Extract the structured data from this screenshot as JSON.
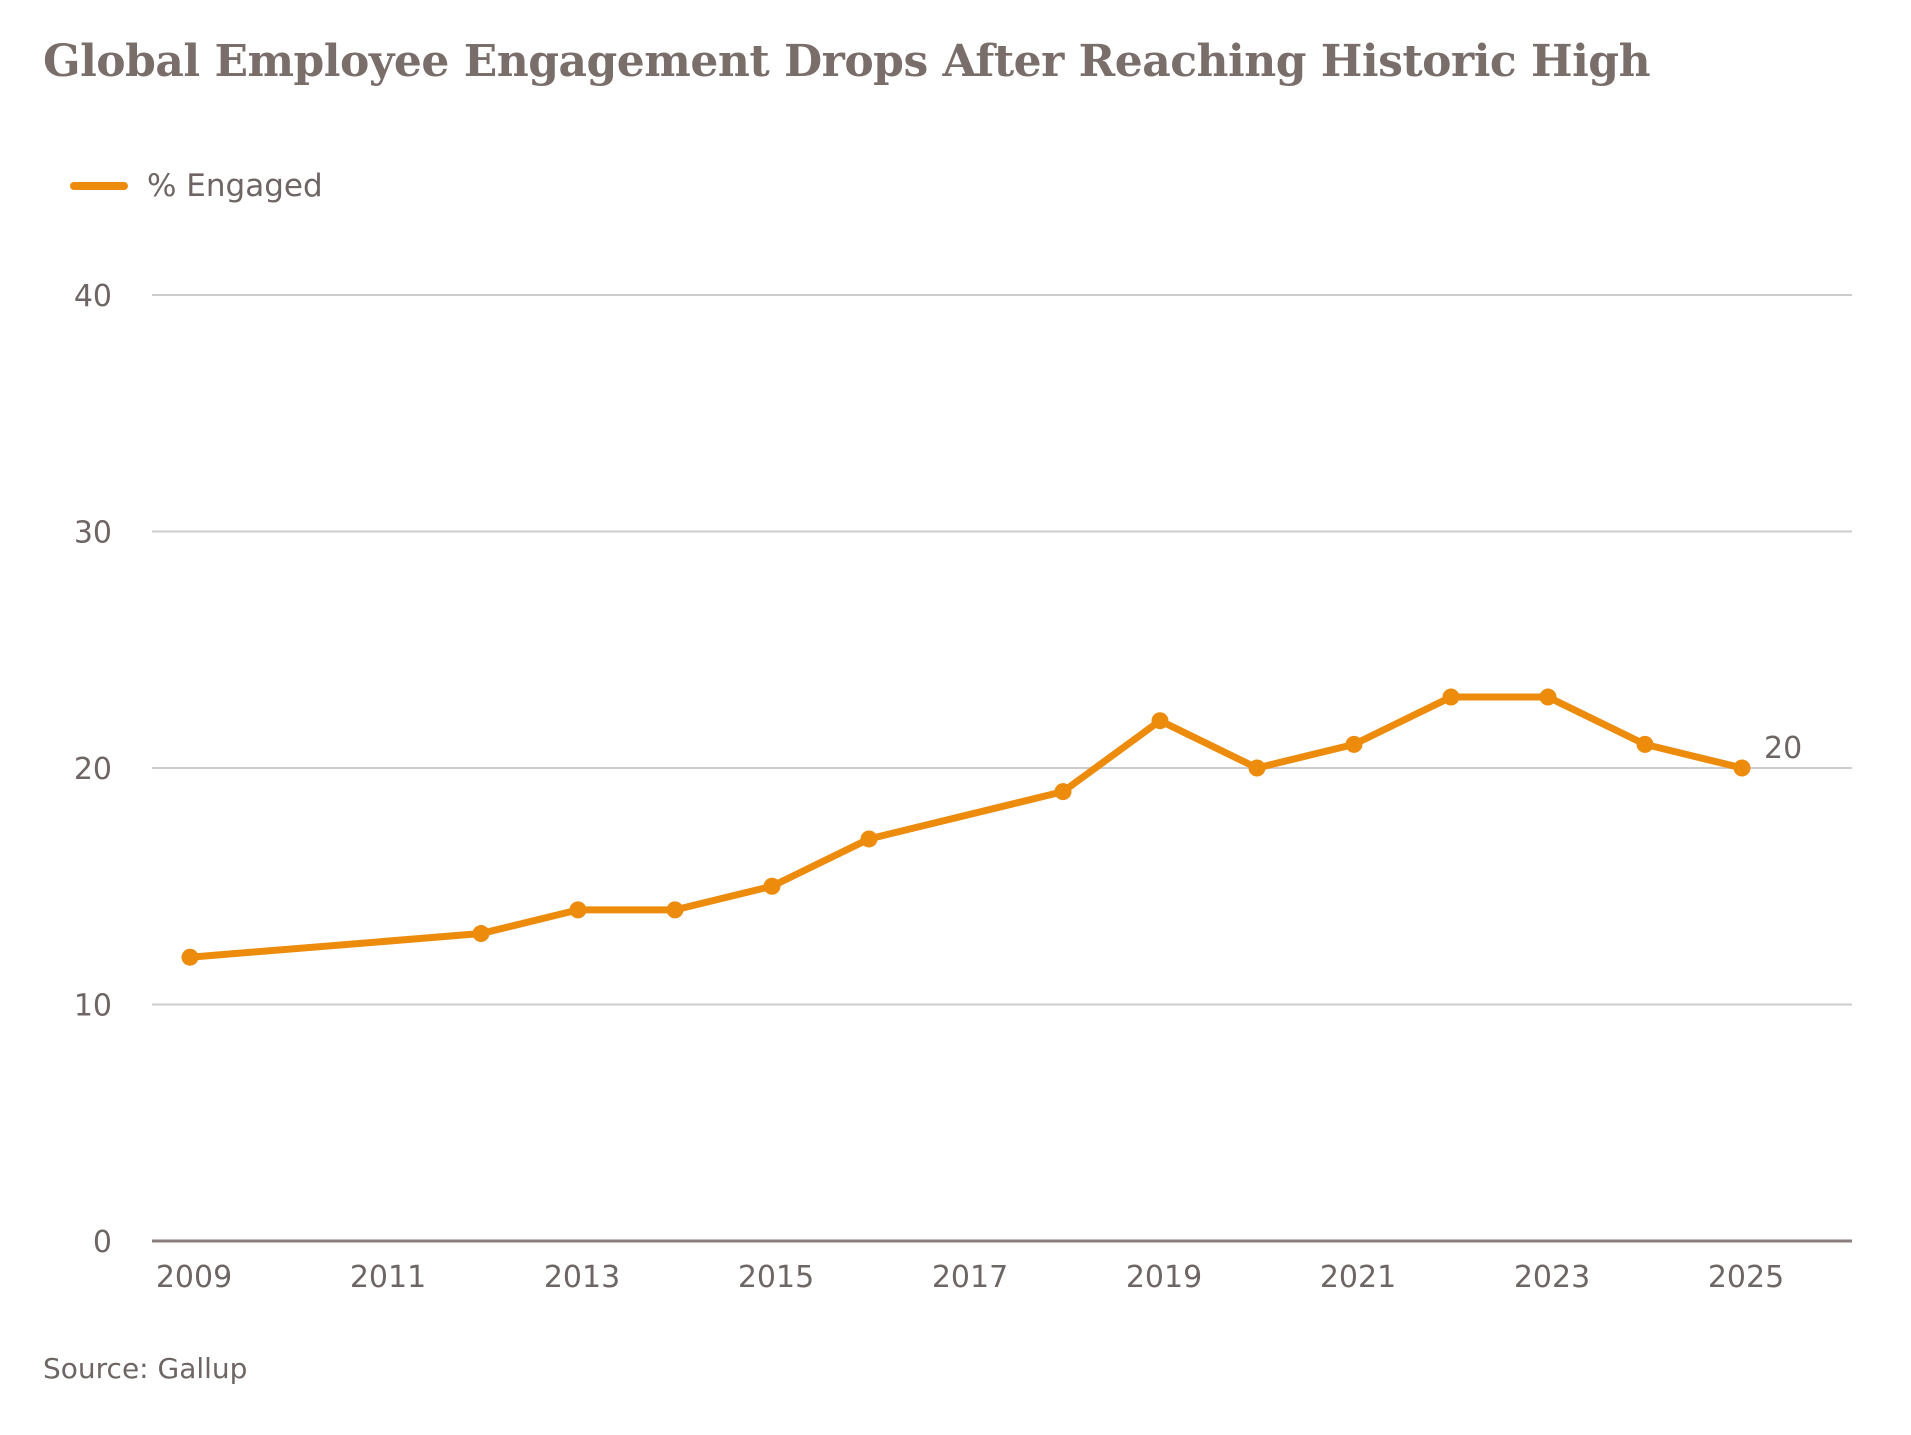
{
  "title": "Global Employee Engagement Drops After Reaching Historic High",
  "legend": {
    "series_label": "% Engaged"
  },
  "source": "Source: Gallup",
  "colors": {
    "series": "#ec8b0c",
    "grid": "#cccccc",
    "axis": "#8a7f7d",
    "text": "#6e6664",
    "title": "#7a6e6b"
  },
  "chart_data": {
    "type": "line",
    "title": "Global Employee Engagement Drops After Reaching Historic High",
    "xlabel": "",
    "ylabel": "",
    "ylim": [
      0,
      40
    ],
    "xlim": [
      2009,
      2026.4
    ],
    "yticks": [
      0,
      10,
      20,
      30,
      40
    ],
    "xticks": [
      2009,
      2011,
      2013,
      2015,
      2017,
      2019,
      2021,
      2023,
      2025
    ],
    "grid": true,
    "legend": "top-left",
    "series": [
      {
        "name": "% Engaged",
        "x": [
          2009,
          2012,
          2013,
          2014,
          2015,
          2016,
          2018,
          2019,
          2020,
          2021,
          2022,
          2023,
          2024,
          2025
        ],
        "values": [
          12,
          13,
          14,
          14,
          15,
          17,
          19,
          22,
          20,
          21,
          23,
          23,
          21,
          20
        ]
      }
    ],
    "annotations": [
      {
        "x": 2025,
        "y": 20,
        "text": "20"
      }
    ]
  }
}
